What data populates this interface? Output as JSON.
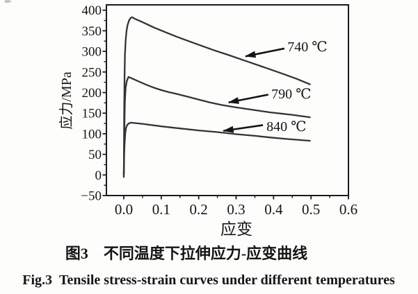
{
  "figure": {
    "captions": {
      "chinese": "图3　不同温度下拉伸应力-应变曲线",
      "english": "Fig.3 Tensile stress-strain curves under different temperatures"
    }
  },
  "chart_data": {
    "type": "line",
    "title": "",
    "xlabel": "应变",
    "ylabel": "应力/MPa",
    "xlim": [
      -0.046,
      0.6
    ],
    "ylim": [
      -50,
      413
    ],
    "grid": false,
    "legend": "arrow annotations inside plot",
    "x_ticks": [
      0.0,
      0.1,
      0.2,
      0.3,
      0.4,
      0.5,
      0.6
    ],
    "x_tick_labels": [
      "0.0",
      "0.1",
      "0.2",
      "0.3",
      "0.4",
      "0.5",
      "0.6"
    ],
    "x_minor_tick_step": 0.05,
    "y_ticks": [
      -50,
      0,
      50,
      100,
      150,
      200,
      250,
      300,
      350,
      400
    ],
    "y_tick_labels": [
      "−50",
      "0",
      "50",
      "100",
      "150",
      "200",
      "250",
      "300",
      "350",
      "400"
    ],
    "y_minor_tick_step": 25,
    "series": [
      {
        "name": "740 ℃",
        "points": [
          [
            0.0,
            -5
          ],
          [
            0.0005,
            60
          ],
          [
            0.001,
            150
          ],
          [
            0.002,
            240
          ],
          [
            0.003,
            290
          ],
          [
            0.005,
            327
          ],
          [
            0.007,
            348
          ],
          [
            0.01,
            364
          ],
          [
            0.014,
            375
          ],
          [
            0.018,
            381
          ],
          [
            0.022,
            383
          ],
          [
            0.03,
            379
          ],
          [
            0.05,
            371
          ],
          [
            0.08,
            358
          ],
          [
            0.11,
            347
          ],
          [
            0.14,
            336
          ],
          [
            0.17,
            326
          ],
          [
            0.2,
            316
          ],
          [
            0.24,
            303
          ],
          [
            0.28,
            291
          ],
          [
            0.325,
            277
          ],
          [
            0.37,
            263
          ],
          [
            0.42,
            247
          ],
          [
            0.46,
            234
          ],
          [
            0.497,
            220
          ]
        ]
      },
      {
        "name": "790 ℃",
        "points": [
          [
            0.0,
            0
          ],
          [
            0.001,
            80
          ],
          [
            0.002,
            140
          ],
          [
            0.003,
            180
          ],
          [
            0.005,
            212
          ],
          [
            0.008,
            228
          ],
          [
            0.0125,
            238
          ],
          [
            0.02,
            235
          ],
          [
            0.04,
            227
          ],
          [
            0.06,
            219
          ],
          [
            0.08,
            212
          ],
          [
            0.1,
            206
          ],
          [
            0.12,
            201
          ],
          [
            0.14,
            197
          ],
          [
            0.17,
            190
          ],
          [
            0.2,
            183
          ],
          [
            0.23,
            176
          ],
          [
            0.26,
            170
          ],
          [
            0.3,
            164
          ],
          [
            0.33,
            160
          ],
          [
            0.36,
            156
          ],
          [
            0.39,
            152
          ],
          [
            0.42,
            149
          ],
          [
            0.45,
            146
          ],
          [
            0.497,
            140
          ]
        ]
      },
      {
        "name": "840 ℃",
        "points": [
          [
            0.0,
            0
          ],
          [
            0.001,
            45
          ],
          [
            0.002,
            75
          ],
          [
            0.004,
            103
          ],
          [
            0.006,
            114
          ],
          [
            0.009,
            121
          ],
          [
            0.013,
            125
          ],
          [
            0.019,
            127
          ],
          [
            0.05,
            124
          ],
          [
            0.1,
            118
          ],
          [
            0.15,
            113
          ],
          [
            0.2,
            108
          ],
          [
            0.25,
            104
          ],
          [
            0.3,
            99
          ],
          [
            0.35,
            95
          ],
          [
            0.39,
            91
          ],
          [
            0.44,
            87
          ],
          [
            0.497,
            83
          ]
        ]
      }
    ],
    "annotations": [
      {
        "label": "740 ℃",
        "label_anchor": [
          0.437,
          310
        ],
        "arrow_tail": [
          0.429,
          307
        ],
        "arrow_head": [
          0.325,
          288
        ]
      },
      {
        "label": "790 ℃",
        "label_anchor": [
          0.394,
          196
        ],
        "arrow_tail": [
          0.386,
          195
        ],
        "arrow_head": [
          0.28,
          176
        ]
      },
      {
        "label": "840 ℃",
        "label_anchor": [
          0.381,
          117
        ],
        "arrow_tail": [
          0.3715,
          121
        ],
        "arrow_head": [
          0.266,
          107
        ]
      }
    ],
    "colors": {
      "curve": "#333333",
      "axis": "#1a1a1a",
      "text": "#151515",
      "arrow": "#141414",
      "background": "#fdfdfc"
    }
  }
}
